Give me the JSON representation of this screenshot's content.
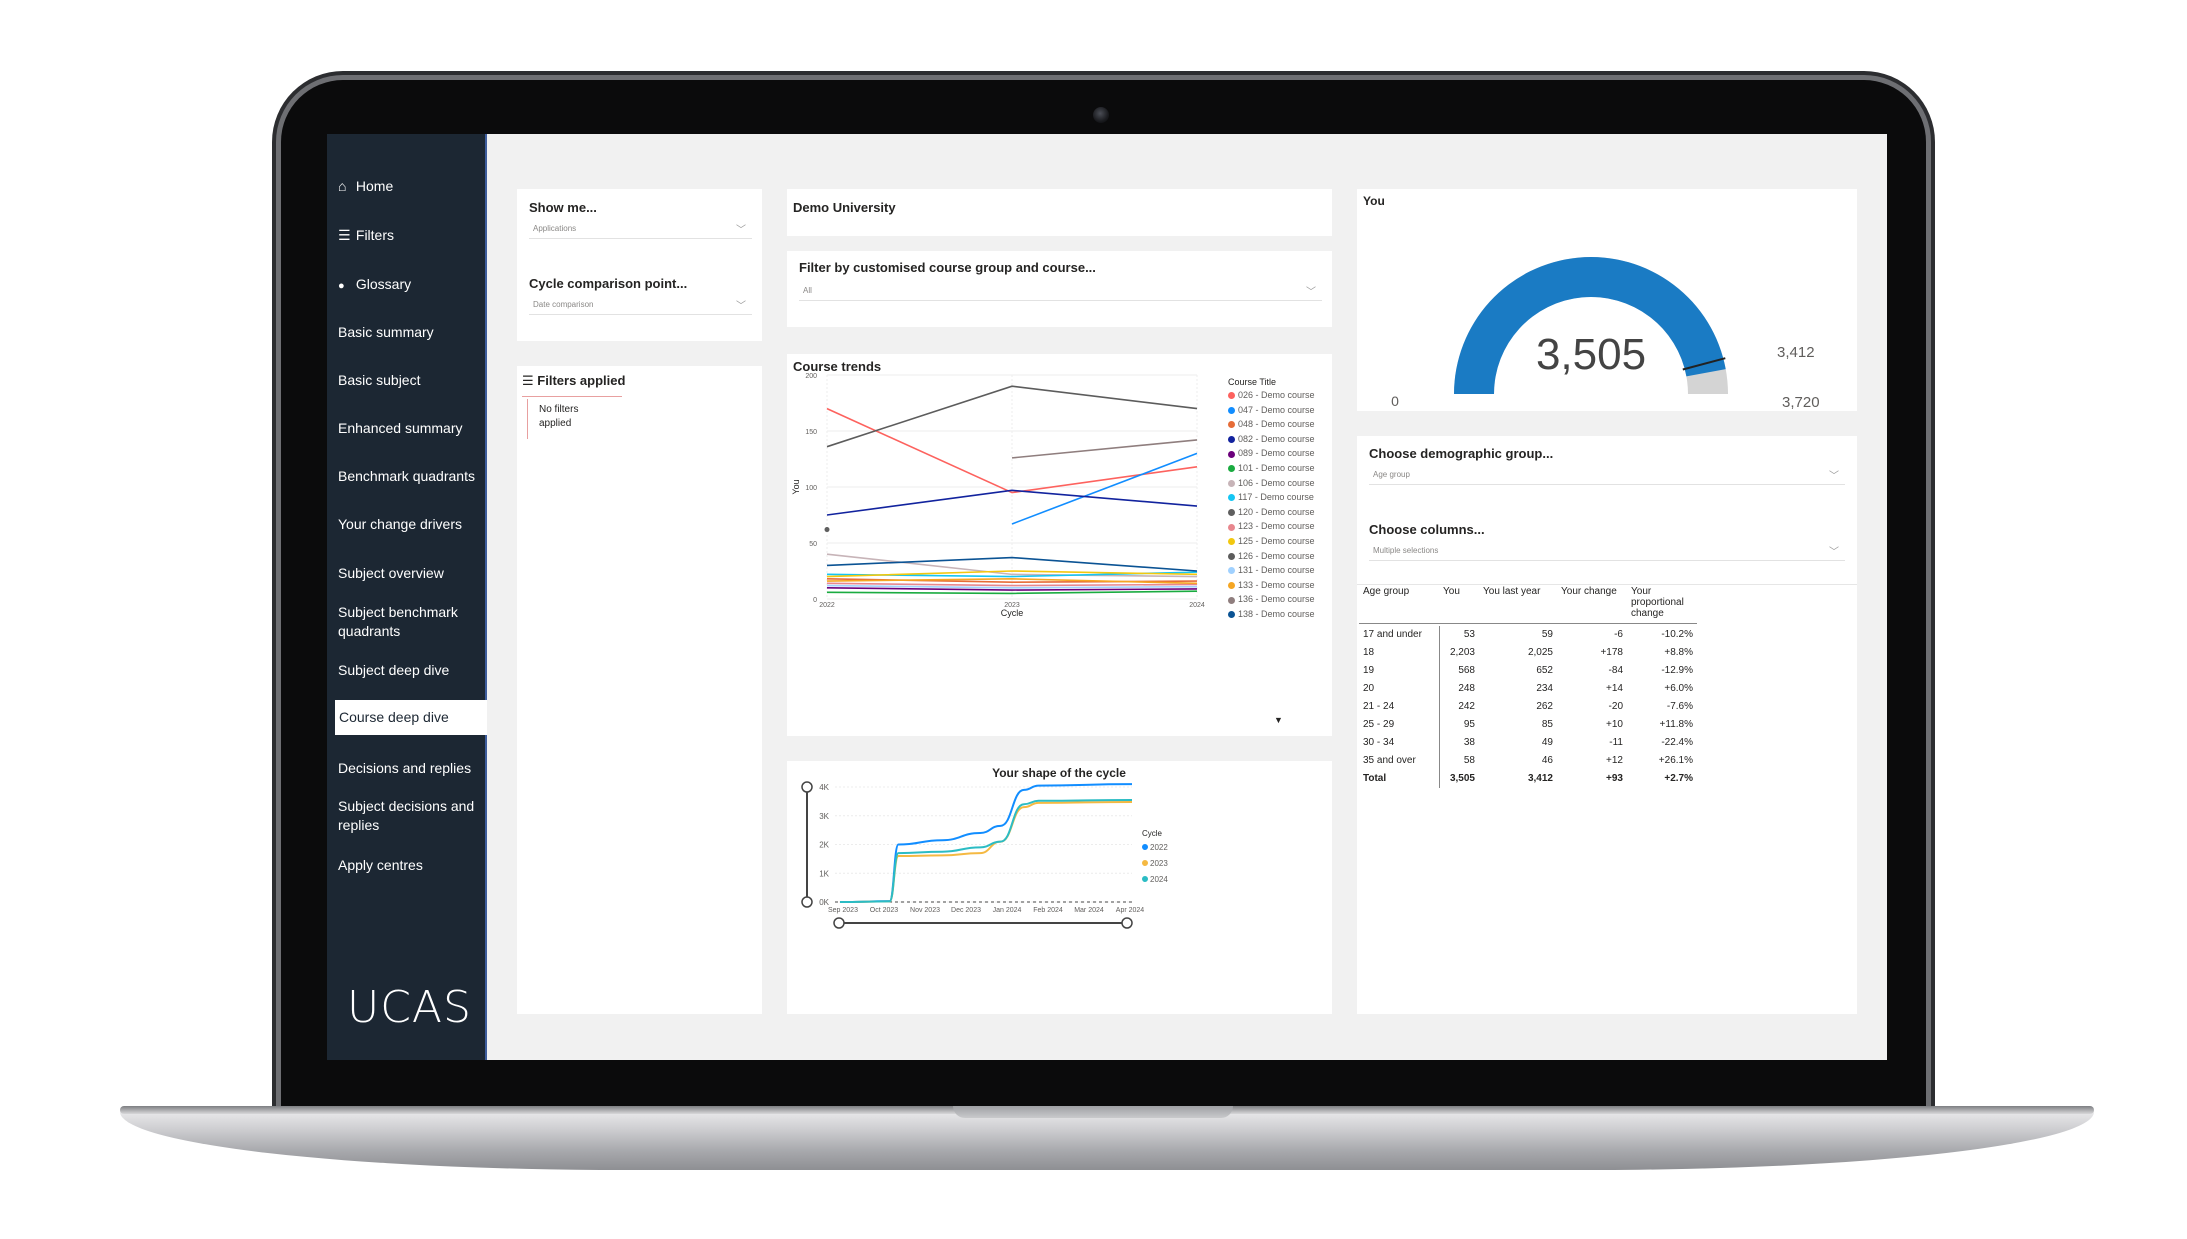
{
  "sidebar": {
    "items": [
      {
        "icon": "home-icon",
        "glyph": "⌂",
        "label": "Home"
      },
      {
        "icon": "filters-icon",
        "glyph": "☰",
        "label": "Filters"
      },
      {
        "icon": "info-icon",
        "glyph": "●",
        "label": "Glossary"
      },
      {
        "label": "Basic summary"
      },
      {
        "label": "Basic subject"
      },
      {
        "label": "Enhanced summary"
      },
      {
        "label": "Benchmark quadrants"
      },
      {
        "label": "Your change drivers"
      },
      {
        "label": "Subject overview"
      },
      {
        "label": "Subject benchmark quadrants"
      },
      {
        "label": "Subject deep dive"
      },
      {
        "label": "Course deep dive",
        "active": true
      },
      {
        "label": "Decisions and replies"
      },
      {
        "label": "Subject decisions and replies"
      },
      {
        "label": "Apply centres"
      }
    ],
    "logo": "UCAS"
  },
  "filters": {
    "show_me_label": "Show me...",
    "show_me_value": "Applications",
    "cycle_label": "Cycle comparison point...",
    "cycle_value": "Date comparison",
    "applied_title": "Filters applied",
    "applied_text": "No filters applied"
  },
  "provider": {
    "name": "Demo University"
  },
  "course_filter": {
    "label": "Filter by customised course group and course...",
    "value": "All"
  },
  "course_trends": {
    "title": "Course trends",
    "legend_title": "Course Title",
    "legend": [
      {
        "label": "026 - Demo course",
        "color": "#fd625e"
      },
      {
        "label": "047 - Demo course",
        "color": "#118dff"
      },
      {
        "label": "048 - Demo course",
        "color": "#e66c37"
      },
      {
        "label": "082 - Demo course",
        "color": "#12239e"
      },
      {
        "label": "089 - Demo course",
        "color": "#6b007b"
      },
      {
        "label": "101 - Demo course",
        "color": "#1aab40"
      },
      {
        "label": "106 - Demo course",
        "color": "#c7b4b8"
      },
      {
        "label": "117 - Demo course",
        "color": "#15c6f4"
      },
      {
        "label": "120 - Demo course",
        "color": "#5f5f5f"
      },
      {
        "label": "123 - Demo course",
        "color": "#e8878e"
      },
      {
        "label": "125 - Demo course",
        "color": "#f2c80f"
      },
      {
        "label": "126 - Demo course",
        "color": "#5c5c5c"
      },
      {
        "label": "131 - Demo course",
        "color": "#a0d1ff"
      },
      {
        "label": "133 - Demo course",
        "color": "#f5a623"
      },
      {
        "label": "136 - Demo course",
        "color": "#8f7e7e"
      },
      {
        "label": "138 - Demo course",
        "color": "#0b5394"
      }
    ]
  },
  "gauge": {
    "title": "You",
    "value": "3,505",
    "min": "0",
    "target": "3,412",
    "max": "3,720",
    "fill_fraction": 0.942,
    "target_fraction": 0.917,
    "fill_color": "#1a7bc4",
    "track_color": "#d4d4d4"
  },
  "demographic": {
    "group_label": "Choose demographic group...",
    "group_value": "Age group",
    "columns_label": "Choose columns...",
    "columns_value": "Multiple selections"
  },
  "age_table": {
    "headers": [
      "Age group",
      "You",
      "You last year",
      "Your change",
      "Your proportional change"
    ],
    "rows": [
      [
        "17 and under",
        "53",
        "59",
        "-6",
        "-10.2%"
      ],
      [
        "18",
        "2,203",
        "2,025",
        "+178",
        "+8.8%"
      ],
      [
        "19",
        "568",
        "652",
        "-84",
        "-12.9%"
      ],
      [
        "20",
        "248",
        "234",
        "+14",
        "+6.0%"
      ],
      [
        "21 - 24",
        "242",
        "262",
        "-20",
        "-7.6%"
      ],
      [
        "25 - 29",
        "95",
        "85",
        "+10",
        "+11.8%"
      ],
      [
        "30 - 34",
        "38",
        "49",
        "-11",
        "-22.4%"
      ],
      [
        "35 and over",
        "58",
        "46",
        "+12",
        "+26.1%"
      ],
      [
        "Total",
        "3,505",
        "3,412",
        "+93",
        "+2.7%"
      ]
    ]
  },
  "chart_data": [
    {
      "type": "line",
      "title": "Course trends",
      "xlabel": "Cycle",
      "ylabel": "You",
      "x": [
        "2022",
        "2023",
        "2024"
      ],
      "yticks": [
        "0",
        "50",
        "100",
        "150",
        "200"
      ],
      "ylim": [
        0,
        200
      ],
      "series": [
        {
          "name": "026 - Demo course",
          "color": "#fd625e",
          "values": [
            170,
            95,
            118
          ]
        },
        {
          "name": "047 - Demo course",
          "color": "#118dff",
          "values": [
            null,
            67,
            130
          ]
        },
        {
          "name": "048 - Demo course",
          "color": "#e66c37",
          "values": [
            18,
            15,
            16
          ]
        },
        {
          "name": "082 - Demo course",
          "color": "#12239e",
          "values": [
            75,
            97,
            83
          ]
        },
        {
          "name": "089 - Demo course",
          "color": "#6b007b",
          "values": [
            10,
            8,
            9
          ]
        },
        {
          "name": "101 - Demo course",
          "color": "#1aab40",
          "values": [
            6,
            5,
            7
          ]
        },
        {
          "name": "106 - Demo course",
          "color": "#c7b4b8",
          "values": [
            40,
            22,
            20
          ]
        },
        {
          "name": "117 - Demo course",
          "color": "#15c6f4",
          "values": [
            22,
            20,
            24
          ]
        },
        {
          "name": "120 - Demo course",
          "color": "#5f5f5f",
          "values": [
            62,
            null,
            null
          ]
        },
        {
          "name": "123 - Demo course",
          "color": "#e8878e",
          "values": [
            14,
            12,
            13
          ]
        },
        {
          "name": "125 - Demo course",
          "color": "#f2c80f",
          "values": [
            20,
            25,
            22
          ]
        },
        {
          "name": "126 - Demo course",
          "color": "#5c5c5c",
          "values": [
            136,
            190,
            170
          ]
        },
        {
          "name": "131 - Demo course",
          "color": "#a0d1ff",
          "values": [
            12,
            10,
            11
          ]
        },
        {
          "name": "133 - Demo course",
          "color": "#f5a623",
          "values": [
            16,
            18,
            14
          ]
        },
        {
          "name": "136 - Demo course",
          "color": "#8f7e7e",
          "values": [
            null,
            126,
            142
          ]
        },
        {
          "name": "138 - Demo course",
          "color": "#0b5394",
          "values": [
            30,
            37,
            25
          ]
        }
      ]
    },
    {
      "type": "line",
      "title": "Your shape of the cycle",
      "legend_title": "Cycle",
      "x_ticks": [
        "Sep 2023",
        "Oct 2023",
        "Nov 2023",
        "Dec 2023",
        "Jan 2024",
        "Feb 2024",
        "Mar 2024",
        "Apr 2024"
      ],
      "y_ticks": [
        "0K",
        "1K",
        "2K",
        "3K",
        "4K"
      ],
      "ylim": [
        0,
        4000
      ],
      "series": [
        {
          "name": "2022",
          "color": "#118dff",
          "values": [
            0,
            30,
            2000,
            2150,
            2400,
            2650,
            3900,
            4050,
            4100
          ]
        },
        {
          "name": "2023",
          "color": "#f5b942",
          "values": [
            0,
            20,
            1600,
            1620,
            1700,
            2100,
            3300,
            3450,
            3480
          ]
        },
        {
          "name": "2024",
          "color": "#2bbcc4",
          "values": [
            0,
            20,
            1700,
            1750,
            1900,
            2100,
            3400,
            3520,
            3550
          ]
        }
      ]
    }
  ]
}
